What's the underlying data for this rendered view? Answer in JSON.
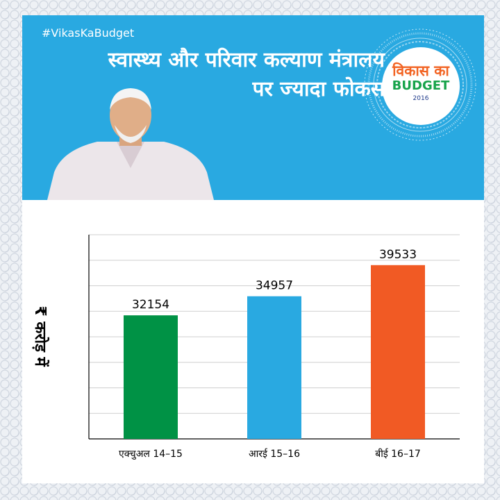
{
  "header": {
    "hashtag": "#VikasKaBudget",
    "headline_line1": "स्वास्थ्य और परिवार कल्याण मंत्रालय",
    "headline_line2": "पर ज्यादा फोकस"
  },
  "badge": {
    "title": "विकास का",
    "subtitle": "BUDGET",
    "year": "2016"
  },
  "colors": {
    "header_bg": "#29a9e1",
    "bar_actual": "#009245",
    "bar_re": "#29a9e1",
    "bar_be": "#f15a24"
  },
  "chart_data": {
    "type": "bar",
    "title": "",
    "xlabel": "",
    "ylabel": "₹ करोड़ में",
    "categories": [
      "एक्चुअल 14–15",
      "आरई 15–16",
      "बीई 16–17"
    ],
    "values": [
      32154,
      34957,
      39533
    ],
    "colors": [
      "#009245",
      "#29a9e1",
      "#f15a24"
    ],
    "grid": true,
    "ylim": [
      14000,
      44000
    ]
  }
}
